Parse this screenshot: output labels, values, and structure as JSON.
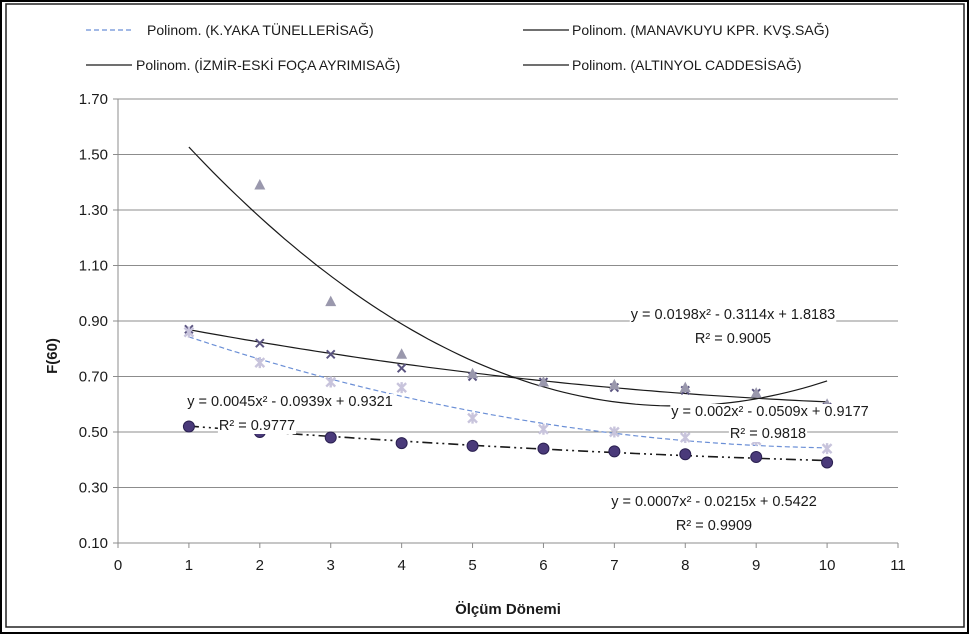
{
  "chart_data": {
    "type": "scatter",
    "xlabel": "Ölçüm Dönemi",
    "ylabel": "F(60)",
    "xlim": [
      0,
      11
    ],
    "ylim": [
      0.1,
      1.7
    ],
    "x_ticks": [
      "0",
      "1",
      "2",
      "3",
      "4",
      "5",
      "6",
      "7",
      "8",
      "9",
      "10",
      "11"
    ],
    "y_ticks": [
      "0.10",
      "0.30",
      "0.50",
      "0.70",
      "0.90",
      "1.10",
      "1.30",
      "1.50",
      "1.70"
    ],
    "grid": "horizontal",
    "legend_position": "top",
    "legend": [
      "Polinom. (K.YAKA TÜNELLERİSAĞ)",
      "Polinom. (MANAVKUYU KPR. KVŞ.SAĞ)",
      "Polinom. (İZMİR-ESKİ FOÇA AYRIMISAĞ)",
      "Polinom. (ALTINYOL CADDESİSAĞ)"
    ],
    "series": [
      {
        "marker": "x",
        "color": "#5a5480",
        "x": [
          1,
          2,
          3,
          4,
          5,
          6,
          7,
          8,
          9,
          10
        ],
        "y": [
          0.87,
          0.82,
          0.78,
          0.73,
          0.7,
          0.68,
          0.66,
          0.65,
          0.64,
          0.59
        ],
        "trend": {
          "a": 0.0045,
          "b": -0.0939,
          "c": 0.9321,
          "x_range": [
            1,
            10
          ],
          "style": "dashed",
          "color": "#6b8fd6"
        }
      },
      {
        "marker": "triangle",
        "color": "#9a98ad",
        "x": [
          2,
          3,
          4,
          5,
          6,
          7,
          8,
          9,
          10
        ],
        "y": [
          1.39,
          0.97,
          0.78,
          0.71,
          0.68,
          0.67,
          0.66,
          0.64,
          0.6
        ],
        "trend": {
          "a": 0.0198,
          "b": -0.3114,
          "c": 1.8183,
          "x_range": [
            1,
            10
          ],
          "style": "solid",
          "color": "#1a1a1a"
        }
      },
      {
        "marker": "star",
        "color": "#c8c4dc",
        "x": [
          1,
          2,
          3,
          4,
          5,
          6,
          7,
          8,
          9,
          10
        ],
        "y": [
          0.86,
          0.75,
          0.68,
          0.66,
          0.55,
          0.51,
          0.5,
          0.48,
          0.47,
          0.44
        ],
        "trend": {
          "a": 0.002,
          "b": -0.0509,
          "c": 0.9177,
          "x_range": [
            1,
            10
          ],
          "style": "solid",
          "color": "#1a1a1a"
        }
      },
      {
        "marker": "circle",
        "color": "#4a3a7a",
        "x": [
          1,
          2,
          3,
          4,
          5,
          6,
          7,
          8,
          9,
          10
        ],
        "y": [
          0.52,
          0.5,
          0.48,
          0.46,
          0.45,
          0.44,
          0.43,
          0.42,
          0.41,
          0.39
        ],
        "trend": {
          "a": 0.0007,
          "b": -0.0215,
          "c": 0.5422,
          "x_range": [
            1,
            10
          ],
          "style": "dashdotdot",
          "color": "#1a1a1a"
        }
      }
    ],
    "annotations": [
      {
        "text": "y = 0.0198x² - 0.3114x + 1.8183"
      },
      {
        "text": "R² = 0.9005"
      },
      {
        "text": "y = 0.002x² - 0.0509x + 0.9177"
      },
      {
        "text": "R² = 0.9818"
      },
      {
        "text": "y = 0.0045x² - 0.0939x + 0.9321"
      },
      {
        "text": "R² = 0.9777"
      },
      {
        "text": "y = 0.0007x² - 0.0215x + 0.5422"
      },
      {
        "text": "R² = 0.9909"
      }
    ]
  }
}
